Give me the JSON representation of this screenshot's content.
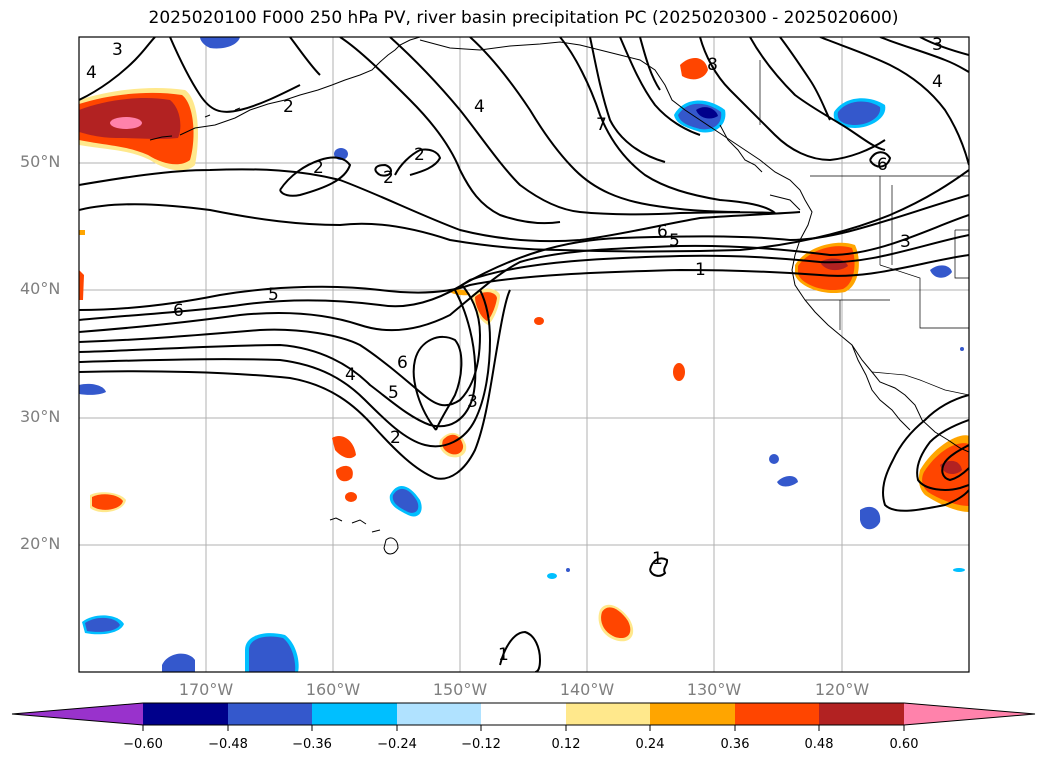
{
  "title": "2025020100 F000 250 hPa PV, river basin precipitation PC (2025020300 - 2025020600)",
  "lat_labels": [
    "50°N",
    "40°N",
    "30°N",
    "20°N"
  ],
  "lon_labels": [
    "170°W",
    "160°W",
    "150°W",
    "140°W",
    "130°W",
    "120°W"
  ],
  "colorbar": {
    "colors": [
      "#9932cc",
      "#00008b",
      "#3458cc",
      "#00bfff",
      "#b0e2ff",
      "#ffffff",
      "#ffe88c",
      "#ffa500",
      "#ff4500",
      "#b22222",
      "#ff82ab"
    ],
    "ticks": [
      "−0.60",
      "−0.48",
      "−0.36",
      "−0.24",
      "−0.12",
      "0.12",
      "0.24",
      "0.36",
      "0.48",
      "0.60"
    ]
  },
  "contour_labels": [
    "3",
    "4",
    "2",
    "4",
    "7",
    "8",
    "3",
    "4",
    "2",
    "2",
    "2",
    "6",
    "6",
    "5",
    "1",
    "3",
    "5",
    "6",
    "6",
    "4",
    "5",
    "3",
    "2",
    "1",
    "1"
  ]
}
